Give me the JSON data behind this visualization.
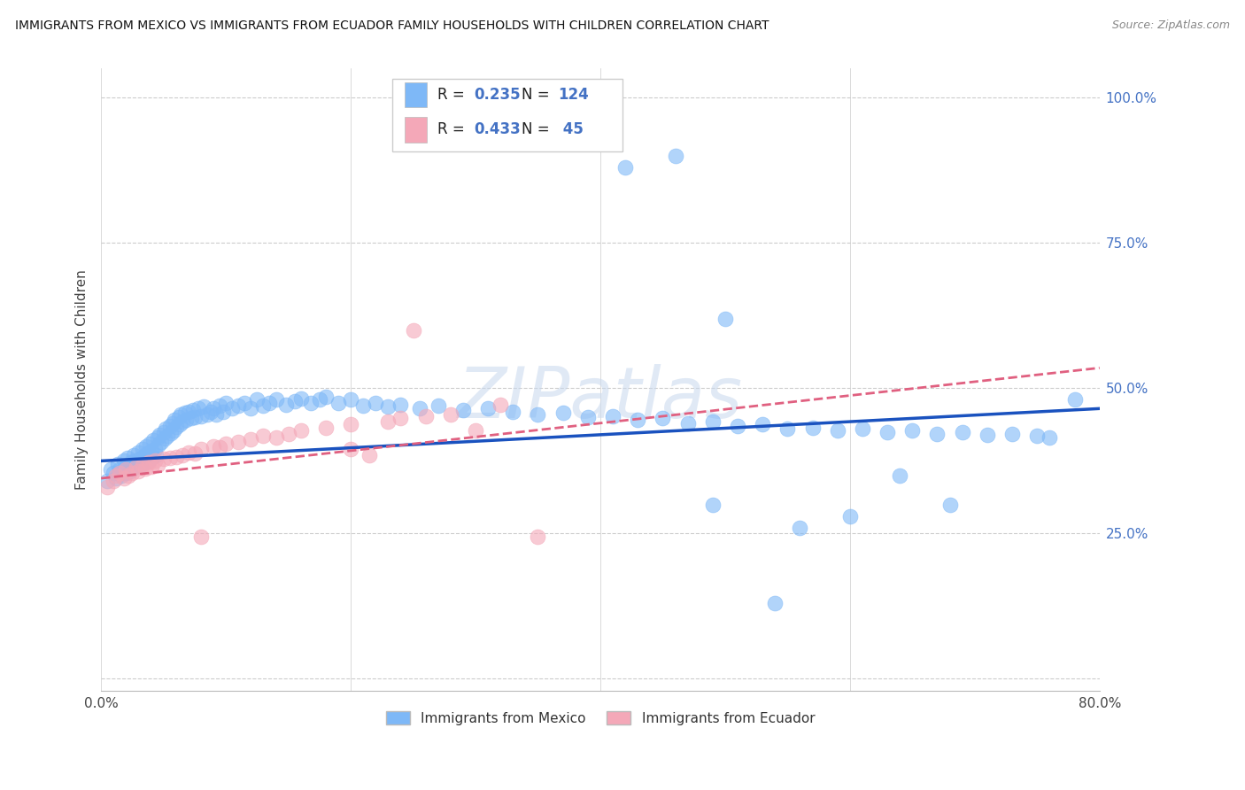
{
  "title": "IMMIGRANTS FROM MEXICO VS IMMIGRANTS FROM ECUADOR FAMILY HOUSEHOLDS WITH CHILDREN CORRELATION CHART",
  "source": "Source: ZipAtlas.com",
  "ylabel": "Family Households with Children",
  "xlim": [
    0.0,
    0.8
  ],
  "ylim": [
    -0.02,
    1.05
  ],
  "yticks": [
    0.0,
    0.25,
    0.5,
    0.75,
    1.0
  ],
  "ytick_labels": [
    "",
    "25.0%",
    "50.0%",
    "75.0%",
    "100.0%"
  ],
  "xticks": [
    0.0,
    0.2,
    0.4,
    0.6,
    0.8
  ],
  "xtick_labels": [
    "0.0%",
    "",
    "",
    "",
    "80.0%"
  ],
  "r_mexico": 0.235,
  "n_mexico": 124,
  "r_ecuador": 0.433,
  "n_ecuador": 45,
  "color_mexico": "#7EB8F7",
  "color_ecuador": "#F4A8B8",
  "line_color_mexico": "#1A52BF",
  "line_color_ecuador": "#E06080",
  "watermark": "ZIPatlas",
  "background_color": "#FFFFFF",
  "grid_color": "#CCCCCC",
  "mexico_x": [
    0.005,
    0.008,
    0.01,
    0.012,
    0.013,
    0.015,
    0.016,
    0.018,
    0.019,
    0.02,
    0.021,
    0.022,
    0.023,
    0.024,
    0.025,
    0.026,
    0.027,
    0.028,
    0.03,
    0.031,
    0.032,
    0.033,
    0.034,
    0.035,
    0.036,
    0.037,
    0.038,
    0.039,
    0.04,
    0.041,
    0.042,
    0.043,
    0.044,
    0.045,
    0.046,
    0.047,
    0.048,
    0.05,
    0.051,
    0.052,
    0.053,
    0.055,
    0.056,
    0.057,
    0.058,
    0.059,
    0.06,
    0.062,
    0.063,
    0.064,
    0.065,
    0.067,
    0.068,
    0.07,
    0.072,
    0.074,
    0.075,
    0.078,
    0.08,
    0.082,
    0.085,
    0.088,
    0.09,
    0.092,
    0.095,
    0.098,
    0.1,
    0.105,
    0.11,
    0.115,
    0.12,
    0.125,
    0.13,
    0.135,
    0.14,
    0.148,
    0.155,
    0.16,
    0.168,
    0.175,
    0.18,
    0.19,
    0.2,
    0.21,
    0.22,
    0.23,
    0.24,
    0.255,
    0.27,
    0.29,
    0.31,
    0.33,
    0.35,
    0.37,
    0.39,
    0.41,
    0.43,
    0.45,
    0.47,
    0.49,
    0.51,
    0.53,
    0.55,
    0.57,
    0.59,
    0.61,
    0.63,
    0.65,
    0.67,
    0.69,
    0.71,
    0.73,
    0.75,
    0.76,
    0.78,
    0.49,
    0.56,
    0.6,
    0.64,
    0.68,
    0.42,
    0.46,
    0.5,
    0.54
  ],
  "mexico_y": [
    0.34,
    0.36,
    0.355,
    0.345,
    0.37,
    0.36,
    0.35,
    0.375,
    0.365,
    0.355,
    0.38,
    0.368,
    0.358,
    0.372,
    0.362,
    0.385,
    0.375,
    0.365,
    0.39,
    0.378,
    0.368,
    0.395,
    0.382,
    0.372,
    0.4,
    0.388,
    0.376,
    0.405,
    0.393,
    0.381,
    0.41,
    0.396,
    0.384,
    0.415,
    0.403,
    0.42,
    0.408,
    0.425,
    0.413,
    0.43,
    0.418,
    0.435,
    0.423,
    0.44,
    0.428,
    0.445,
    0.433,
    0.45,
    0.438,
    0.455,
    0.443,
    0.458,
    0.446,
    0.46,
    0.448,
    0.463,
    0.45,
    0.465,
    0.452,
    0.468,
    0.455,
    0.46,
    0.465,
    0.455,
    0.47,
    0.46,
    0.475,
    0.465,
    0.47,
    0.475,
    0.465,
    0.48,
    0.47,
    0.475,
    0.48,
    0.472,
    0.477,
    0.482,
    0.475,
    0.48,
    0.485,
    0.475,
    0.48,
    0.47,
    0.475,
    0.468,
    0.472,
    0.465,
    0.47,
    0.462,
    0.465,
    0.46,
    0.455,
    0.458,
    0.45,
    0.452,
    0.445,
    0.448,
    0.44,
    0.442,
    0.435,
    0.438,
    0.43,
    0.432,
    0.428,
    0.43,
    0.425,
    0.427,
    0.422,
    0.424,
    0.42,
    0.422,
    0.418,
    0.415,
    0.48,
    0.3,
    0.26,
    0.28,
    0.35,
    0.3,
    0.88,
    0.9,
    0.62,
    0.13
  ],
  "ecuador_x": [
    0.005,
    0.01,
    0.012,
    0.015,
    0.018,
    0.02,
    0.022,
    0.025,
    0.028,
    0.03,
    0.033,
    0.035,
    0.038,
    0.04,
    0.043,
    0.045,
    0.05,
    0.055,
    0.06,
    0.065,
    0.07,
    0.075,
    0.08,
    0.09,
    0.095,
    0.1,
    0.11,
    0.12,
    0.13,
    0.14,
    0.15,
    0.16,
    0.18,
    0.2,
    0.215,
    0.23,
    0.24,
    0.25,
    0.26,
    0.28,
    0.3,
    0.32,
    0.35,
    0.2,
    0.08
  ],
  "ecuador_y": [
    0.33,
    0.34,
    0.35,
    0.355,
    0.345,
    0.36,
    0.35,
    0.355,
    0.365,
    0.358,
    0.368,
    0.362,
    0.372,
    0.365,
    0.375,
    0.368,
    0.378,
    0.38,
    0.382,
    0.385,
    0.39,
    0.388,
    0.395,
    0.4,
    0.398,
    0.405,
    0.408,
    0.412,
    0.418,
    0.415,
    0.422,
    0.428,
    0.432,
    0.438,
    0.385,
    0.442,
    0.448,
    0.6,
    0.452,
    0.455,
    0.428,
    0.472,
    0.245,
    0.395,
    0.245
  ]
}
